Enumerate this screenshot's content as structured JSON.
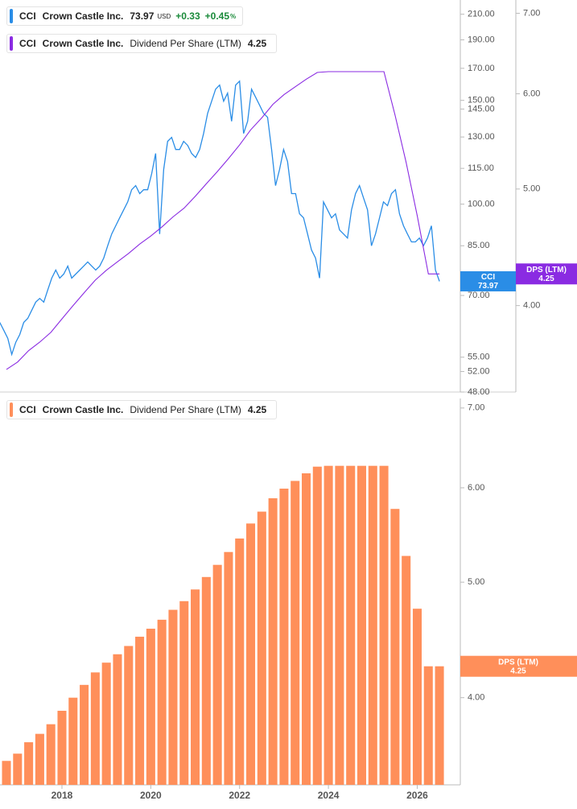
{
  "chart_data": [
    {
      "type": "line",
      "log_scale": true,
      "ticker": "CCI",
      "currency": "USD",
      "change": "+0.33",
      "change_percent": "+0.45",
      "percent_sign": "%",
      "badge_label": "DPS (LTM)",
      "xlim": [
        2016.605,
        2026.97
      ],
      "ylim": [
        48,
        222
      ],
      "yticks": [
        {
          "value": 210,
          "label": "210.00"
        },
        {
          "value": 190,
          "label": "190.00"
        },
        {
          "value": 170,
          "label": "170.00"
        },
        {
          "value": 150,
          "label": "150.00"
        },
        {
          "value": 145,
          "label": "145.00"
        },
        {
          "value": 130,
          "label": "130.00"
        },
        {
          "value": 115,
          "label": "115.00"
        },
        {
          "value": 100,
          "label": "100.00"
        },
        {
          "value": 85,
          "label": "85.00"
        },
        {
          "value": 70,
          "label": "70.00"
        },
        {
          "value": 55,
          "label": "55.00"
        },
        {
          "value": 52,
          "label": "52.00"
        },
        {
          "value": 48,
          "label": "48.00"
        }
      ],
      "y2lim": [
        3.39,
        7.18
      ],
      "y2ticks": [
        {
          "value": 4,
          "label": "4.00"
        },
        {
          "value": 5,
          "label": "5.00"
        },
        {
          "value": 6,
          "label": "6.00"
        },
        {
          "value": 7,
          "label": "7.00"
        }
      ],
      "series": [
        {
          "name": "Crown Castle Inc.",
          "color": "#2a8de6",
          "x": [
            2016.6,
            2016.69,
            2016.78,
            2016.87,
            2016.96,
            2017.05,
            2017.14,
            2017.23,
            2017.32,
            2017.41,
            2017.5,
            2017.59,
            2017.68,
            2017.77,
            2017.86,
            2017.95,
            2018.04,
            2018.13,
            2018.22,
            2018.31,
            2018.4,
            2018.49,
            2018.58,
            2018.67,
            2018.76,
            2018.85,
            2018.94,
            2019.03,
            2019.12,
            2019.21,
            2019.3,
            2019.39,
            2019.48,
            2019.57,
            2019.66,
            2019.75,
            2019.84,
            2019.93,
            2020.02,
            2020.11,
            2020.2,
            2020.29,
            2020.38,
            2020.47,
            2020.56,
            2020.65,
            2020.74,
            2020.83,
            2020.92,
            2021.01,
            2021.1,
            2021.19,
            2021.28,
            2021.37,
            2021.46,
            2021.55,
            2021.64,
            2021.73,
            2021.82,
            2021.91,
            2022.0,
            2022.09,
            2022.18,
            2022.27,
            2022.36,
            2022.45,
            2022.54,
            2022.63,
            2022.72,
            2022.81,
            2022.9,
            2022.99,
            2023.08,
            2023.17,
            2023.26,
            2023.35,
            2023.44,
            2023.53,
            2023.62,
            2023.71,
            2023.8,
            2023.89,
            2023.98,
            2024.07,
            2024.16,
            2024.25,
            2024.34,
            2024.43,
            2024.52,
            2024.61,
            2024.7,
            2024.79,
            2024.88,
            2024.97,
            2025.06,
            2025.15,
            2025.24,
            2025.33,
            2025.42,
            2025.51,
            2025.6,
            2025.69,
            2025.78,
            2025.87,
            2025.96,
            2026.05,
            2026.14,
            2026.23,
            2026.32,
            2026.41,
            2026.5
          ],
          "values": [
            63.0,
            61.1,
            59.2,
            55.6,
            58.3,
            60.1,
            63.0,
            64.0,
            66.1,
            68.2,
            69.2,
            68.2,
            71.5,
            74.9,
            77.3,
            74.9,
            76.1,
            78.5,
            74.9,
            76.1,
            77.3,
            78.5,
            79.8,
            78.5,
            77.3,
            78.5,
            81.0,
            85.0,
            89.0,
            91.9,
            94.8,
            97.8,
            100.9,
            105.8,
            107.5,
            104.2,
            105.8,
            105.8,
            112.7,
            121.9,
            89.0,
            114.5,
            127.8,
            129.8,
            123.8,
            123.8,
            127.8,
            125.8,
            121.9,
            120.0,
            123.8,
            131.8,
            142.6,
            149.5,
            156.7,
            159.2,
            149.5,
            154.3,
            138.2,
            159.2,
            161.7,
            131.8,
            138.2,
            156.7,
            151.9,
            147.2,
            142.6,
            140.4,
            123.8,
            107.5,
            114.5,
            123.8,
            118.1,
            104.2,
            104.2,
            96.3,
            94.8,
            89.0,
            83.6,
            81.0,
            74.9,
            100.9,
            97.8,
            94.8,
            96.3,
            90.4,
            89.0,
            87.6,
            97.8,
            104.2,
            107.5,
            102.5,
            97.8,
            85.0,
            89.0,
            94.8,
            100.9,
            99.4,
            104.2,
            105.8,
            96.3,
            91.9,
            89.0,
            86.3,
            86.3,
            87.6,
            85.0,
            87.6,
            91.9,
            77.3,
            73.97
          ]
        },
        {
          "name": "Dividend Per Share (LTM)",
          "color": "#8a2be2",
          "axis": "y2",
          "x": [
            2016.75,
            2017,
            2017.25,
            2017.5,
            2017.75,
            2018,
            2018.25,
            2018.5,
            2018.75,
            2019,
            2019.25,
            2019.5,
            2019.75,
            2020,
            2020.25,
            2020.5,
            2020.75,
            2021,
            2021.25,
            2021.5,
            2021.75,
            2022,
            2022.25,
            2022.5,
            2022.75,
            2023,
            2023.25,
            2023.5,
            2023.75,
            2024,
            2024.25,
            2024.5,
            2024.75,
            2025,
            2025.25,
            2025.5,
            2025.75,
            2026,
            2026.25,
            2026.5
          ],
          "values": [
            3.54,
            3.59,
            3.67,
            3.73,
            3.8,
            3.9,
            4.0,
            4.1,
            4.2,
            4.28,
            4.35,
            4.42,
            4.5,
            4.57,
            4.65,
            4.74,
            4.82,
            4.93,
            5.05,
            5.17,
            5.3,
            5.44,
            5.6,
            5.73,
            5.88,
            5.99,
            6.08,
            6.17,
            6.25,
            6.26,
            6.26,
            6.26,
            6.26,
            6.26,
            6.26,
            5.76,
            5.26,
            4.75,
            4.25,
            4.25
          ]
        }
      ]
    },
    {
      "type": "bar",
      "log_scale": true,
      "ticker": "CCI",
      "company": "Crown Castle Inc.",
      "badge_label": "DPS (LTM)",
      "xlim": [
        2016.605,
        2026.97
      ],
      "xticks": [
        2018,
        2020,
        2022,
        2024,
        2026
      ],
      "ylim": [
        3.38,
        7.13
      ],
      "yticks": [
        {
          "value": 4,
          "label": "4.00"
        },
        {
          "value": 5,
          "label": "5.00"
        },
        {
          "value": 6,
          "label": "6.00"
        },
        {
          "value": 7,
          "label": "7.00"
        }
      ],
      "series": [
        {
          "name": "Dividend Per Share (LTM)",
          "color": "#ff8f5a",
          "x": [
            2016.75,
            2017,
            2017.25,
            2017.5,
            2017.75,
            2018,
            2018.25,
            2018.5,
            2018.75,
            2019,
            2019.25,
            2019.5,
            2019.75,
            2020,
            2020.25,
            2020.5,
            2020.75,
            2021,
            2021.25,
            2021.5,
            2021.75,
            2022,
            2022.25,
            2022.5,
            2022.75,
            2023,
            2023.25,
            2023.5,
            2023.75,
            2024,
            2024.25,
            2024.5,
            2024.75,
            2025,
            2025.25,
            2025.5,
            2025.75,
            2026,
            2026.25,
            2026.5
          ],
          "values": [
            3.54,
            3.59,
            3.67,
            3.73,
            3.8,
            3.9,
            4.0,
            4.1,
            4.2,
            4.28,
            4.35,
            4.42,
            4.5,
            4.57,
            4.65,
            4.74,
            4.82,
            4.93,
            5.05,
            5.17,
            5.3,
            5.44,
            5.6,
            5.73,
            5.88,
            5.99,
            6.08,
            6.17,
            6.25,
            6.26,
            6.26,
            6.26,
            6.26,
            6.26,
            6.26,
            5.76,
            5.26,
            4.75,
            4.25,
            4.25
          ]
        }
      ]
    }
  ]
}
